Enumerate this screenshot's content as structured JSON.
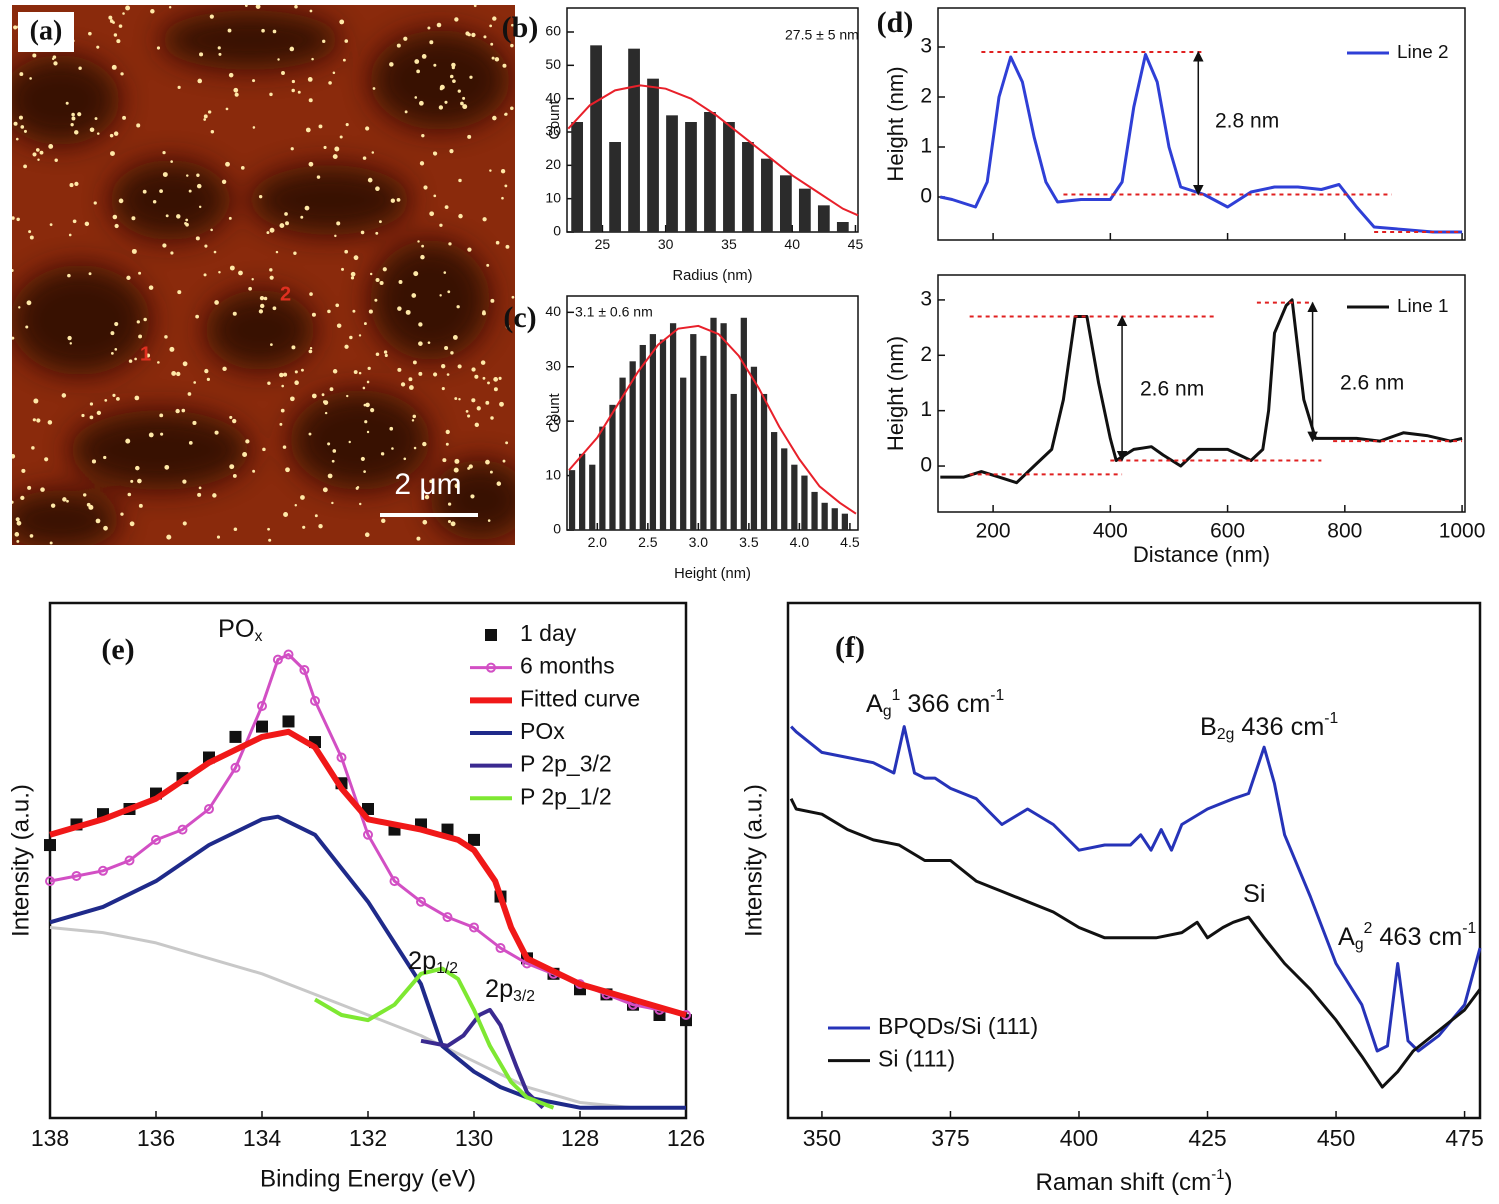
{
  "image_panel": {
    "label": "(a)",
    "markers": [
      "1",
      "2"
    ],
    "scale_bar": "2 μm"
  },
  "chart_data": [
    {
      "type": "histogram",
      "label": "(b)",
      "annotations": [
        "27.5 ± 5 nm"
      ],
      "xlabel": "Radius (nm)",
      "ylabel": "Count",
      "bins": [
        22.25,
        23.75,
        25.25,
        26.75,
        28.25,
        29.75,
        31.25,
        32.75,
        34.25,
        35.75,
        37.25,
        38.75,
        40.25,
        41.75,
        43.25,
        44.75
      ],
      "counts": [
        33,
        56,
        27,
        55,
        46,
        35,
        33,
        36,
        33,
        27,
        22,
        17,
        13,
        8,
        3
      ],
      "color": "#2b2b2b",
      "fit": {
        "color": "#e8202a",
        "x": [
          22.3,
          24,
          26,
          28,
          30,
          32,
          34,
          36,
          38,
          40,
          42,
          44,
          45.2
        ],
        "values": [
          31,
          38,
          42.5,
          44,
          43,
          40,
          35,
          29,
          23,
          17,
          12,
          7,
          5
        ]
      },
      "xlim": [
        22.2,
        45.2
      ],
      "xticks": [
        25,
        30,
        35,
        40,
        45
      ],
      "ylim": [
        0,
        67.2
      ],
      "yticks": [
        0,
        10,
        20,
        30,
        40,
        50,
        60
      ]
    },
    {
      "type": "histogram",
      "label": "(c)",
      "annotations": [
        "3.1 ± 0.6 nm"
      ],
      "xlabel": "Height (nm)",
      "ylabel": "Count",
      "bins": [
        1.7,
        1.8,
        1.9,
        2.0,
        2.1,
        2.2,
        2.3,
        2.4,
        2.5,
        2.6,
        2.7,
        2.8,
        2.9,
        3.0,
        3.1,
        3.2,
        3.3,
        3.4,
        3.5,
        3.6,
        3.7,
        3.8,
        3.9,
        4.0,
        4.1,
        4.2,
        4.3,
        4.4,
        4.5
      ],
      "counts": [
        11,
        14,
        12,
        19,
        23,
        28,
        31,
        34,
        36,
        35,
        38,
        28,
        36,
        32,
        39,
        38,
        25,
        39,
        30,
        25,
        18,
        15,
        12,
        10,
        7,
        5,
        4,
        3
      ],
      "color": "#2b2b2b",
      "fit": {
        "color": "#e8202a",
        "x": [
          1.72,
          2.0,
          2.2,
          2.4,
          2.6,
          2.8,
          3.0,
          3.2,
          3.4,
          3.6,
          3.8,
          4.0,
          4.2,
          4.4,
          4.56
        ],
        "values": [
          11,
          17,
          23,
          29,
          34,
          37,
          37.5,
          36,
          32,
          26,
          19,
          13,
          8,
          5,
          3
        ]
      },
      "xlim": [
        1.7,
        4.58
      ],
      "xticks": [
        {
          "value": 2,
          "label": "2.0"
        },
        2.5,
        {
          "value": 3,
          "label": "3.0"
        },
        3.5,
        {
          "value": 4,
          "label": "4.0"
        },
        4.5
      ],
      "ylim": [
        0,
        43
      ],
      "yticks": [
        0,
        10,
        20,
        30,
        40
      ]
    },
    {
      "type": "line",
      "label": "(d)",
      "ylabel": "Height (nm)",
      "annotations": [
        "2.8 nm"
      ],
      "legend": "upper right",
      "level_color": "#e02020",
      "x": [
        110,
        130,
        170,
        190,
        210,
        230,
        250,
        270,
        290,
        310,
        350,
        400,
        420,
        440,
        460,
        480,
        500,
        520,
        560,
        600,
        640,
        680,
        720,
        760,
        790,
        820,
        850,
        900,
        950,
        1000
      ],
      "series": [
        {
          "name": "Line 2",
          "color": "#2f3fd6",
          "values": [
            0,
            -0.05,
            -0.2,
            0.3,
            2.0,
            2.8,
            2.3,
            1.2,
            0.3,
            -0.1,
            -0.05,
            -0.05,
            0.3,
            1.8,
            2.85,
            2.3,
            1.0,
            0.2,
            0.05,
            -0.2,
            0.1,
            0.2,
            0.2,
            0.15,
            0.25,
            -0.2,
            -0.6,
            -0.65,
            -0.7,
            -0.7
          ]
        }
      ],
      "levels": [
        {
          "x": [
            180,
            560
          ],
          "y": 2.9
        },
        {
          "x": [
            320,
            880
          ],
          "y": 0.05
        },
        {
          "x": [
            850,
            1000
          ],
          "y": -0.7
        }
      ],
      "arrows": [
        {
          "x": 550,
          "y": [
            0.05,
            2.9
          ]
        }
      ],
      "xlim": [
        106,
        1005
      ],
      "xticks": [
        200,
        400,
        600,
        800,
        1000
      ],
      "xtick_labels": false,
      "ylim": [
        -0.86,
        3.78
      ],
      "yticks": [
        0,
        1,
        2,
        3
      ]
    },
    {
      "type": "line",
      "xlabel": "Distance (nm)",
      "ylabel": "Height (nm)",
      "annotations": [
        "2.6 nm",
        "2.6 nm"
      ],
      "legend": "upper right",
      "level_color": "#e02020",
      "x": [
        110,
        150,
        180,
        210,
        240,
        270,
        300,
        320,
        340,
        360,
        380,
        400,
        410,
        440,
        470,
        490,
        520,
        550,
        600,
        640,
        660,
        670,
        680,
        700,
        710,
        730,
        750,
        780,
        820,
        860,
        900,
        940,
        980,
        1000
      ],
      "series": [
        {
          "name": "Line 1",
          "color": "#111111",
          "values": [
            -0.2,
            -0.2,
            -0.1,
            -0.2,
            -0.3,
            0.0,
            0.3,
            1.2,
            2.7,
            2.7,
            1.5,
            0.5,
            0.1,
            0.3,
            0.35,
            0.2,
            0.0,
            0.3,
            0.3,
            0.1,
            0.3,
            1.0,
            2.4,
            2.9,
            3.0,
            1.2,
            0.5,
            0.5,
            0.5,
            0.45,
            0.6,
            0.55,
            0.45,
            0.5
          ]
        }
      ],
      "levels": [
        {
          "x": [
            160,
            580
          ],
          "y": 2.7
        },
        {
          "x": [
            160,
            420
          ],
          "y": -0.15
        },
        {
          "x": [
            400,
            760
          ],
          "y": 0.1
        },
        {
          "x": [
            650,
            740
          ],
          "y": 2.95
        },
        {
          "x": [
            780,
            1000
          ],
          "y": 0.45
        }
      ],
      "arrows": [
        {
          "x": 420,
          "y": [
            0.1,
            2.7
          ]
        },
        {
          "x": 745,
          "y": [
            0.45,
            2.95
          ]
        }
      ],
      "xlim": [
        106,
        1005
      ],
      "xticks": [
        200,
        400,
        600,
        800,
        1000
      ],
      "ylim": [
        -0.83,
        3.45
      ],
      "yticks": [
        0,
        1,
        2,
        3
      ]
    },
    {
      "type": "line",
      "label": "(e)",
      "xlabel": "Binding Energy (eV)",
      "ylabel": "Intensity (a.u.)",
      "legend": "upper right",
      "annotations": [
        [
          {
            "t": "PO"
          },
          {
            "sub": "x"
          }
        ],
        [
          {
            "t": "2p"
          },
          {
            "sub": "1/2"
          }
        ],
        [
          {
            "t": "2p"
          },
          {
            "sub": "3/2"
          }
        ]
      ],
      "series": [
        {
          "color": "#c8c8c8",
          "width": 3,
          "x": [
            138,
            137,
            136,
            135,
            134,
            133,
            132,
            131,
            130,
            129,
            128,
            127,
            126
          ],
          "values": [
            37,
            36,
            34,
            31,
            28,
            24,
            20,
            16,
            11,
            6,
            3,
            2,
            2
          ]
        },
        {
          "name": "1 day",
          "color": "#111111",
          "marker": "square",
          "line": false,
          "x": [
            138,
            137.5,
            137,
            136.5,
            136,
            135.5,
            135,
            134.5,
            134,
            133.5,
            133,
            132.5,
            132,
            131.5,
            131,
            130.5,
            130,
            129.5,
            129,
            128.5,
            128,
            127.5,
            127,
            126.5,
            126
          ],
          "values": [
            53,
            57,
            59,
            60,
            63,
            66,
            70,
            74,
            76,
            77,
            73,
            65,
            60,
            56,
            57,
            56,
            54,
            43,
            31,
            28,
            25,
            24,
            22,
            20,
            19
          ]
        },
        {
          "name": "6 months",
          "color": "#d24fc4",
          "marker": "circle",
          "width": 3,
          "x": [
            138,
            137.5,
            137,
            136.5,
            136,
            135.5,
            135,
            134.5,
            134,
            133.7,
            133.5,
            133.2,
            133,
            132.5,
            132,
            131.5,
            131,
            130.5,
            130,
            129.5,
            129,
            128.5,
            128,
            127.5,
            127,
            126.5,
            126
          ],
          "values": [
            46,
            47,
            48,
            50,
            54,
            56,
            60,
            68,
            80,
            89,
            90,
            87,
            81,
            70,
            55,
            46,
            42,
            39,
            37,
            33,
            30,
            28,
            26,
            24,
            22,
            21,
            20
          ]
        },
        {
          "name": "Fitted curve",
          "color": "#f01818",
          "width": 6,
          "x": [
            138,
            137,
            136,
            135,
            134,
            133.5,
            133,
            132.5,
            132,
            131,
            130.3,
            130,
            129.6,
            129.3,
            129,
            128,
            127,
            126
          ],
          "values": [
            55,
            58,
            62,
            69,
            74,
            75,
            72,
            64,
            58,
            56,
            54,
            52,
            46,
            37,
            31,
            26,
            23,
            20
          ]
        },
        {
          "name": "POx",
          "color": "#1f2a8a",
          "width": 4,
          "x": [
            138,
            137,
            136,
            135,
            134,
            133.7,
            133,
            132,
            131,
            130.6,
            130,
            129.5,
            129,
            128.5,
            128,
            127,
            126
          ],
          "values": [
            38,
            41,
            46,
            53,
            58,
            58.5,
            55,
            42,
            26,
            14,
            9,
            6,
            4,
            3,
            2,
            2,
            2
          ]
        },
        {
          "name": "P 2p_3/2",
          "color": "#3a2a90",
          "width": 4,
          "x": [
            131,
            130.5,
            130.2,
            129.9,
            129.7,
            129.5,
            129.2,
            129,
            128.7
          ],
          "values": [
            15,
            14,
            16,
            20,
            21,
            18,
            10,
            5,
            2
          ]
        },
        {
          "name": "P 2p_1/2",
          "color": "#7ee832",
          "width": 4,
          "x": [
            133,
            132.5,
            132,
            131.5,
            131,
            130.6,
            130.3,
            130,
            129.7,
            129.3,
            129,
            128.5
          ],
          "values": [
            23,
            20,
            19,
            22,
            28,
            29,
            27,
            21,
            14,
            7,
            4,
            2
          ]
        }
      ],
      "xlim": [
        138,
        126
      ],
      "xticks": [
        138,
        136,
        134,
        132,
        130,
        128,
        126
      ],
      "ylim": [
        0,
        100
      ]
    },
    {
      "type": "line",
      "label": "(f)",
      "xlabel": [
        {
          "t": "Raman shift (cm"
        },
        {
          "sup": "-1"
        },
        {
          "t": ")"
        }
      ],
      "ylabel": "Intensity (a.u.)",
      "legend": "lower left",
      "annotations": [
        [
          {
            "t": "A"
          },
          {
            "sub": "g"
          },
          {
            "sup": "1"
          },
          {
            "t": " 366 cm"
          },
          {
            "sup": "-1"
          }
        ],
        [
          {
            "t": "B"
          },
          {
            "sub": "2g"
          },
          {
            "t": " 436 cm"
          },
          {
            "sup": "-1"
          }
        ],
        [
          {
            "t": "Si"
          }
        ],
        [
          {
            "t": "A"
          },
          {
            "sub": "g"
          },
          {
            "sup": "2"
          },
          {
            "t": " 463 cm"
          },
          {
            "sup": "-1"
          }
        ]
      ],
      "series": [
        {
          "name": "BPQDs/Si (111)",
          "color": "#2633b8",
          "width": 3,
          "x": [
            344,
            345,
            350,
            355,
            360,
            364,
            366,
            368,
            370,
            372,
            375,
            380,
            385,
            390,
            395,
            400,
            405,
            410,
            412,
            414,
            416,
            418,
            420,
            425,
            430,
            433,
            436,
            438,
            440,
            445,
            450,
            455,
            458,
            460,
            462,
            464,
            466,
            470,
            475,
            478
          ],
          "values": [
            76,
            75,
            71,
            70,
            69,
            67,
            76,
            67,
            66,
            66,
            64,
            62,
            57,
            60,
            57,
            52,
            53,
            53,
            55,
            52,
            56,
            52,
            57,
            60,
            62,
            63,
            72,
            65,
            55,
            43,
            30,
            22,
            13,
            14,
            30,
            15,
            13,
            16,
            22,
            33
          ]
        },
        {
          "name": "Si (111)",
          "color": "#111111",
          "width": 3,
          "x": [
            344,
            345,
            350,
            355,
            360,
            365,
            370,
            375,
            380,
            385,
            390,
            395,
            400,
            405,
            410,
            415,
            420,
            423,
            425,
            428,
            430,
            433,
            436,
            440,
            445,
            450,
            455,
            459,
            462,
            465,
            470,
            475,
            478
          ],
          "values": [
            62,
            60,
            59,
            56,
            54,
            53,
            50,
            50,
            46,
            44,
            42,
            40,
            37,
            35,
            35,
            35,
            36,
            38,
            35,
            37,
            38,
            39,
            35,
            30,
            25,
            19,
            12,
            6,
            9,
            13,
            17,
            21,
            25
          ]
        }
      ],
      "xlim": [
        343.4,
        478
      ],
      "xticks": [
        350,
        375,
        400,
        425,
        450,
        475
      ],
      "ylim": [
        0,
        100
      ]
    }
  ]
}
